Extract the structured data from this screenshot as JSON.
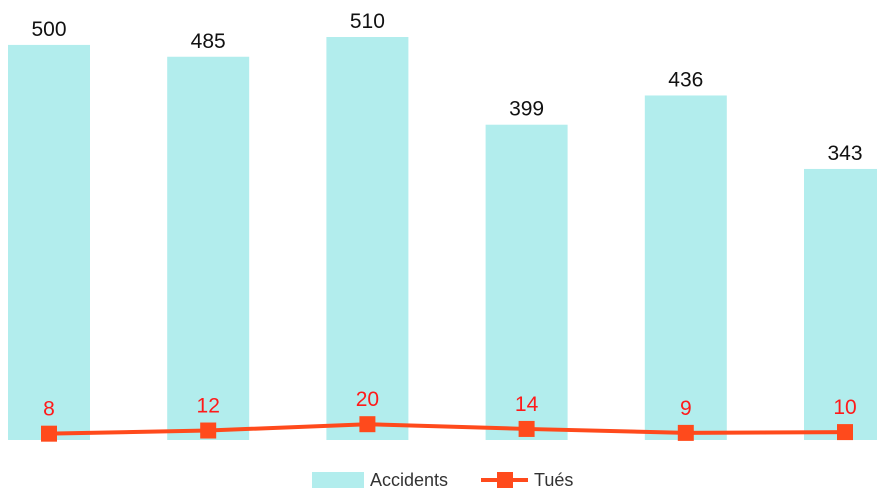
{
  "chart_data": {
    "type": "bar",
    "categories": [
      "",
      "",
      "",
      "",
      "",
      ""
    ],
    "series": [
      {
        "name": "Accidents",
        "type": "bar",
        "values": [
          500,
          485,
          510,
          399,
          436,
          343
        ],
        "color": "#b2eded",
        "label_color": "#111111"
      },
      {
        "name": "Tués",
        "type": "line",
        "values": [
          8,
          12,
          20,
          14,
          9,
          10
        ],
        "color": "#ff4a1c",
        "label_color": "#ff1a1a"
      }
    ],
    "ylim": [
      0,
      510
    ],
    "grid": false,
    "legend_placement": "bottom"
  }
}
